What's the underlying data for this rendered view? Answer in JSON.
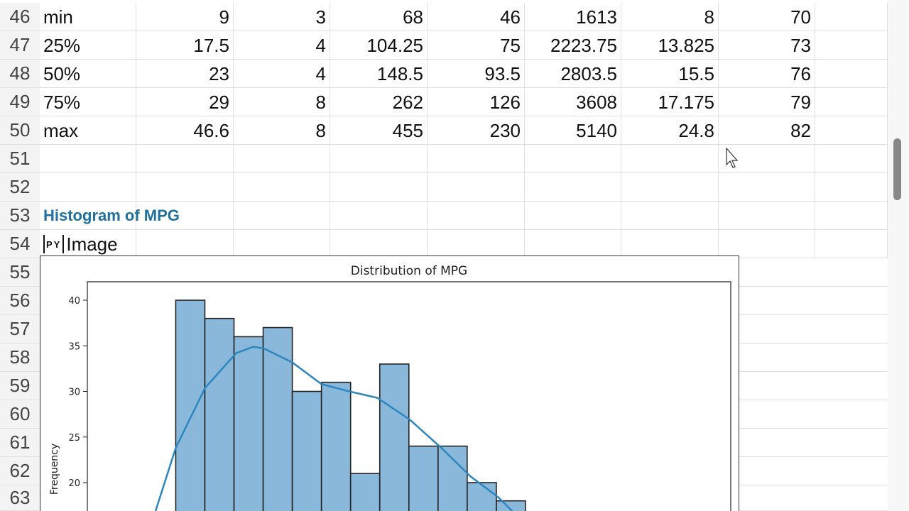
{
  "rows": [
    {
      "n": "46",
      "cells": [
        "min",
        "9",
        "3",
        "68",
        "46",
        "1613",
        "8",
        "70"
      ]
    },
    {
      "n": "47",
      "cells": [
        "25%",
        "17.5",
        "4",
        "104.25",
        "75",
        "2223.75",
        "13.825",
        "73"
      ]
    },
    {
      "n": "48",
      "cells": [
        "50%",
        "23",
        "4",
        "148.5",
        "93.5",
        "2803.5",
        "15.5",
        "76"
      ]
    },
    {
      "n": "49",
      "cells": [
        "75%",
        "29",
        "8",
        "262",
        "126",
        "3608",
        "17.175",
        "79"
      ]
    },
    {
      "n": "50",
      "cells": [
        "max",
        "46.6",
        "8",
        "455",
        "230",
        "5140",
        "24.8",
        "82"
      ]
    },
    {
      "n": "51",
      "cells": []
    },
    {
      "n": "52",
      "cells": []
    },
    {
      "n": "53",
      "cells": []
    },
    {
      "n": "54",
      "cells": []
    },
    {
      "n": "55"
    },
    {
      "n": "56"
    },
    {
      "n": "57"
    },
    {
      "n": "58"
    },
    {
      "n": "59"
    },
    {
      "n": "60"
    },
    {
      "n": "61"
    },
    {
      "n": "62"
    },
    {
      "n": "63"
    }
  ],
  "section_title": "Histogram of MPG",
  "py_cell": {
    "badge": "PY",
    "label": "Image"
  },
  "chart_data": {
    "type": "bar",
    "title": "Distribution of MPG",
    "xlabel": "",
    "ylabel": "Frequency",
    "ylim_visible": [
      17,
      42
    ],
    "yticks": [
      20,
      25,
      30,
      35,
      40
    ],
    "bin_start": 9,
    "bin_width": 1.88,
    "xlim": [
      3.3,
      44.8
    ],
    "values": [
      40,
      38,
      36,
      37,
      30,
      31,
      21,
      33,
      24,
      24,
      20,
      18
    ],
    "bar_color": "#8ab8da",
    "kde_color": "#2e86c1",
    "kde": [
      [
        7.7,
        16.8
      ],
      [
        9,
        23.8
      ],
      [
        10.9,
        30.4
      ],
      [
        12.9,
        34.2
      ],
      [
        14,
        34.9
      ],
      [
        14.7,
        34.7
      ],
      [
        16.5,
        33.2
      ],
      [
        18.4,
        30.8
      ],
      [
        20.2,
        30
      ],
      [
        22,
        29.3
      ],
      [
        24.1,
        26.9
      ],
      [
        26.2,
        23.7
      ],
      [
        28,
        20.7
      ],
      [
        29.8,
        18.4
      ],
      [
        30.7,
        16.8
      ]
    ]
  }
}
